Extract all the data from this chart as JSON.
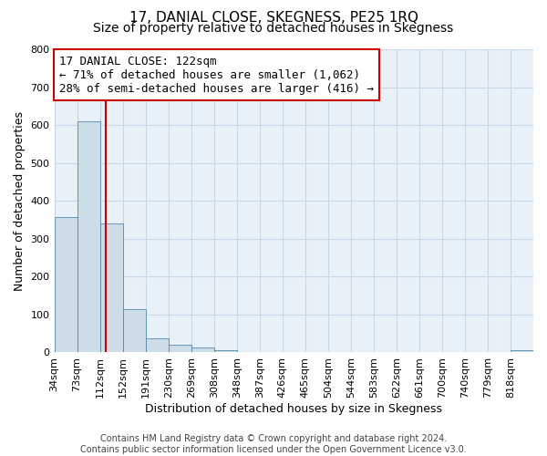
{
  "title": "17, DANIAL CLOSE, SKEGNESS, PE25 1RQ",
  "subtitle": "Size of property relative to detached houses in Skegness",
  "xlabel": "Distribution of detached houses by size in Skegness",
  "ylabel": "Number of detached properties",
  "bin_edges": [
    34,
    73,
    112,
    151,
    190,
    229,
    268,
    307,
    346,
    385,
    424,
    463,
    502,
    541,
    580,
    619,
    658,
    697,
    736,
    775,
    814,
    853
  ],
  "bin_labels": [
    "34sqm",
    "73sqm",
    "112sqm",
    "152sqm",
    "191sqm",
    "230sqm",
    "269sqm",
    "308sqm",
    "348sqm",
    "387sqm",
    "426sqm",
    "465sqm",
    "504sqm",
    "544sqm",
    "583sqm",
    "622sqm",
    "661sqm",
    "700sqm",
    "740sqm",
    "779sqm",
    "818sqm"
  ],
  "bar_heights": [
    358,
    610,
    340,
    113,
    38,
    20,
    14,
    5,
    0,
    0,
    0,
    0,
    0,
    0,
    0,
    0,
    0,
    0,
    0,
    0,
    5
  ],
  "bar_color": "#ccdde8",
  "bar_edge_color": "#5588aa",
  "vline_x": 122,
  "vline_color": "#cc0000",
  "annotation_line1": "17 DANIAL CLOSE: 122sqm",
  "annotation_line2": "← 71% of detached houses are smaller (1,062)",
  "annotation_line3": "28% of semi-detached houses are larger (416) →",
  "annotation_box_color": "#ffffff",
  "annotation_box_edge": "#cc0000",
  "ylim": [
    0,
    800
  ],
  "yticks": [
    0,
    100,
    200,
    300,
    400,
    500,
    600,
    700,
    800
  ],
  "bg_color": "#e8f0f8",
  "grid_color": "#c8d8e8",
  "footer_text": "Contains HM Land Registry data © Crown copyright and database right 2024.\nContains public sector information licensed under the Open Government Licence v3.0.",
  "title_fontsize": 11,
  "subtitle_fontsize": 10,
  "axis_label_fontsize": 9,
  "tick_fontsize": 8,
  "annotation_fontsize": 9,
  "footer_fontsize": 7
}
